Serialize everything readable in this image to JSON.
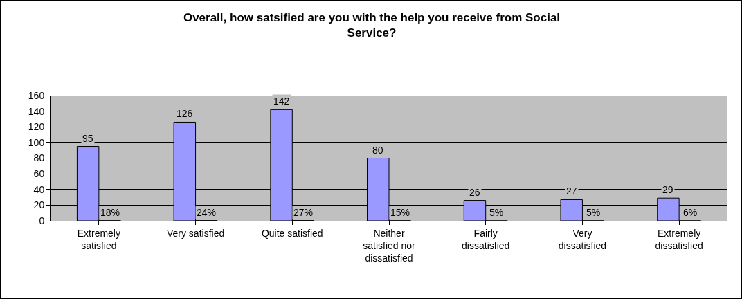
{
  "chart_data": {
    "type": "bar",
    "title": "Overall, how satsified are you with the help you receive from Social Service?",
    "categories": [
      "Extremely satisfied",
      "Very satisfied",
      "Quite satisfied",
      "Neither satisfied nor dissatisfied",
      "Fairly dissatisfied",
      "Very dissatisfied",
      "Extremely dissatisfied"
    ],
    "series": [
      {
        "color": "#9999ff",
        "values": [
          95,
          126,
          142,
          80,
          26,
          27,
          29
        ],
        "value_labels": [
          "95",
          "126",
          "142",
          "80",
          "26",
          "27",
          "29"
        ]
      },
      {
        "color": "#000000",
        "values": [
          0.18,
          0.24,
          0.27,
          0.15,
          0.05,
          0.05,
          0.06
        ],
        "value_labels": [
          "18%",
          "24%",
          "27%",
          "15%",
          "5%",
          "5%",
          "6%"
        ]
      }
    ],
    "ylim": [
      0,
      160
    ],
    "yticks": [
      0,
      20,
      40,
      60,
      80,
      100,
      120,
      140,
      160
    ],
    "grid": "y"
  }
}
